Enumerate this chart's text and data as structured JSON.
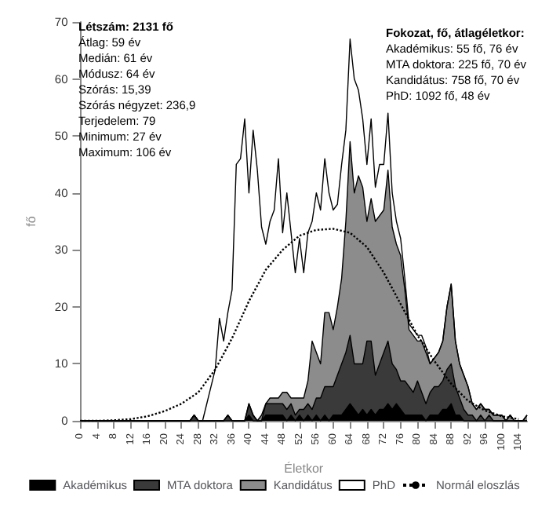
{
  "chart_data": {
    "type": "area",
    "stacked": true,
    "xlabel": "Életkor",
    "ylabel": "fő",
    "x": [
      0,
      1,
      2,
      3,
      4,
      5,
      6,
      7,
      8,
      9,
      10,
      11,
      12,
      13,
      14,
      15,
      16,
      17,
      18,
      19,
      20,
      21,
      22,
      23,
      24,
      25,
      26,
      27,
      28,
      29,
      30,
      31,
      32,
      33,
      34,
      35,
      36,
      37,
      38,
      39,
      40,
      41,
      42,
      43,
      44,
      45,
      46,
      47,
      48,
      49,
      50,
      51,
      52,
      53,
      54,
      55,
      56,
      57,
      58,
      59,
      60,
      61,
      62,
      63,
      64,
      65,
      66,
      67,
      68,
      69,
      70,
      71,
      72,
      73,
      74,
      75,
      76,
      77,
      78,
      79,
      80,
      81,
      82,
      83,
      84,
      85,
      86,
      87,
      88,
      89,
      90,
      91,
      92,
      93,
      94,
      95,
      96,
      97,
      98,
      99,
      100,
      101,
      102,
      103,
      104,
      105,
      106
    ],
    "xlim": [
      0,
      106
    ],
    "xticks": [
      0,
      4,
      8,
      12,
      16,
      20,
      24,
      28,
      32,
      36,
      40,
      44,
      48,
      52,
      56,
      60,
      64,
      68,
      72,
      76,
      80,
      84,
      88,
      92,
      96,
      100,
      104
    ],
    "ylim": [
      0,
      70
    ],
    "yticks": [
      0,
      10,
      20,
      30,
      40,
      50,
      60,
      70
    ],
    "grid": false,
    "legend": "bottom",
    "series": [
      {
        "name": "Akadémikus",
        "color": "#000000",
        "values": [
          0,
          0,
          0,
          0,
          0,
          0,
          0,
          0,
          0,
          0,
          0,
          0,
          0,
          0,
          0,
          0,
          0,
          0,
          0,
          0,
          0,
          0,
          0,
          0,
          0,
          0,
          0,
          0,
          0,
          0,
          0,
          0,
          0,
          0,
          0,
          0,
          0,
          0,
          0,
          0,
          1,
          0,
          0,
          0,
          1,
          1,
          1,
          1,
          1,
          0,
          1,
          0,
          1,
          0,
          1,
          0,
          1,
          0,
          1,
          0,
          1,
          1,
          1,
          2,
          3,
          2,
          1,
          2,
          1,
          2,
          1,
          2,
          2,
          3,
          2,
          3,
          2,
          1,
          1,
          1,
          1,
          1,
          0,
          1,
          1,
          1,
          2,
          2,
          3,
          1,
          1,
          0,
          0,
          0,
          0,
          0,
          0,
          0,
          0,
          0,
          0,
          0,
          0,
          0,
          0,
          0,
          0
        ]
      },
      {
        "name": "MTA doktora",
        "color": "#3a3a3a",
        "values": [
          0,
          0,
          0,
          0,
          0,
          0,
          0,
          0,
          0,
          0,
          0,
          0,
          0,
          0,
          0,
          0,
          0,
          0,
          0,
          0,
          0,
          0,
          0,
          0,
          0,
          0,
          0,
          1,
          0,
          0,
          0,
          0,
          0,
          0,
          0,
          1,
          0,
          0,
          0,
          0,
          2,
          1,
          0,
          0,
          2,
          2,
          2,
          2,
          2,
          2,
          2,
          1,
          1,
          2,
          2,
          2,
          3,
          4,
          5,
          6,
          5,
          7,
          9,
          10,
          12,
          8,
          9,
          8,
          13,
          12,
          7,
          8,
          10,
          11,
          8,
          6,
          5,
          6,
          5,
          4,
          6,
          4,
          3,
          4,
          5,
          5,
          5,
          7,
          7,
          5,
          3,
          2,
          1,
          1,
          0,
          1,
          0,
          1,
          0,
          0,
          0,
          0,
          0,
          0,
          0,
          0,
          0
        ]
      },
      {
        "name": "Kandidátus",
        "color": "#8c8c8c",
        "values": [
          0,
          0,
          0,
          0,
          0,
          0,
          0,
          0,
          0,
          0,
          0,
          0,
          0,
          0,
          0,
          0,
          0,
          0,
          0,
          0,
          0,
          0,
          0,
          0,
          0,
          0,
          0,
          0,
          0,
          0,
          0,
          0,
          0,
          0,
          0,
          0,
          0,
          0,
          0,
          0,
          0,
          0,
          0,
          1,
          0,
          1,
          1,
          1,
          2,
          3,
          1,
          3,
          2,
          2,
          4,
          12,
          8,
          6,
          13,
          13,
          10,
          12,
          15,
          23,
          34,
          30,
          33,
          31,
          21,
          25,
          27,
          26,
          25,
          30,
          24,
          22,
          22,
          16,
          10,
          10,
          7,
          9,
          9,
          5,
          5,
          6,
          7,
          11,
          14,
          8,
          6,
          6,
          5,
          2,
          2,
          2,
          2,
          1,
          1,
          1,
          1,
          0,
          1,
          0,
          0,
          0,
          1
        ]
      },
      {
        "name": "PhD",
        "color": "#ffffff",
        "values": [
          0,
          0,
          0,
          0,
          0,
          0,
          0,
          0,
          0,
          0,
          0,
          0,
          0,
          0,
          0,
          0,
          0,
          0,
          0,
          0,
          0,
          0,
          0,
          0,
          0,
          0,
          0,
          0,
          0,
          0,
          3,
          6,
          9,
          18,
          14,
          18,
          23,
          45,
          46,
          53,
          37,
          50,
          44,
          33,
          28,
          31,
          33,
          42,
          28,
          35,
          29,
          22,
          28,
          22,
          26,
          21,
          28,
          27,
          27,
          21,
          21,
          18,
          20,
          16,
          18,
          20,
          15,
          12,
          10,
          14,
          6,
          9,
          8,
          10,
          6,
          4,
          3,
          2,
          1,
          1,
          1,
          1,
          1,
          0,
          0,
          0,
          0,
          0,
          0,
          0,
          0,
          0,
          0,
          0,
          0,
          0,
          0,
          0,
          0,
          0,
          0,
          0,
          0,
          0,
          0,
          0,
          0
        ]
      },
      {
        "name": "Normál eloszlás",
        "type": "line",
        "color": "#000000",
        "line_style": "dotted",
        "marker": "none",
        "x": [
          0,
          4,
          8,
          12,
          16,
          20,
          24,
          28,
          32,
          36,
          40,
          44,
          48,
          52,
          56,
          60,
          64,
          68,
          72,
          76,
          80,
          84,
          88,
          92,
          96,
          100,
          104
        ],
        "values": [
          0,
          0,
          0.1,
          0.3,
          0.8,
          1.7,
          3,
          5,
          9,
          14.5,
          21,
          26.5,
          30,
          32.5,
          33.5,
          33.7,
          33,
          30.5,
          26,
          20.5,
          15,
          10.5,
          6.5,
          3.5,
          1.8,
          0.8,
          0.3
        ]
      }
    ],
    "annotations": [
      "Létszám: 2131 fő\nÁtlag: 59 év\nMedián: 61 év\nMódusz: 64 év\nSzórás: 15,39\nSzórás négyzet: 236,9\nTerjedelem: 79\nMinimum: 27 év\nMaximum: 106 év",
      "Fokozat, fő, átlagéletkor:\nAkadémikus: 55 fő, 76 év\nMTA doktora: 225 fő, 70 év\nKandidátus: 758 fő, 70 év\nPhD: 1092 fő, 48 év"
    ]
  }
}
